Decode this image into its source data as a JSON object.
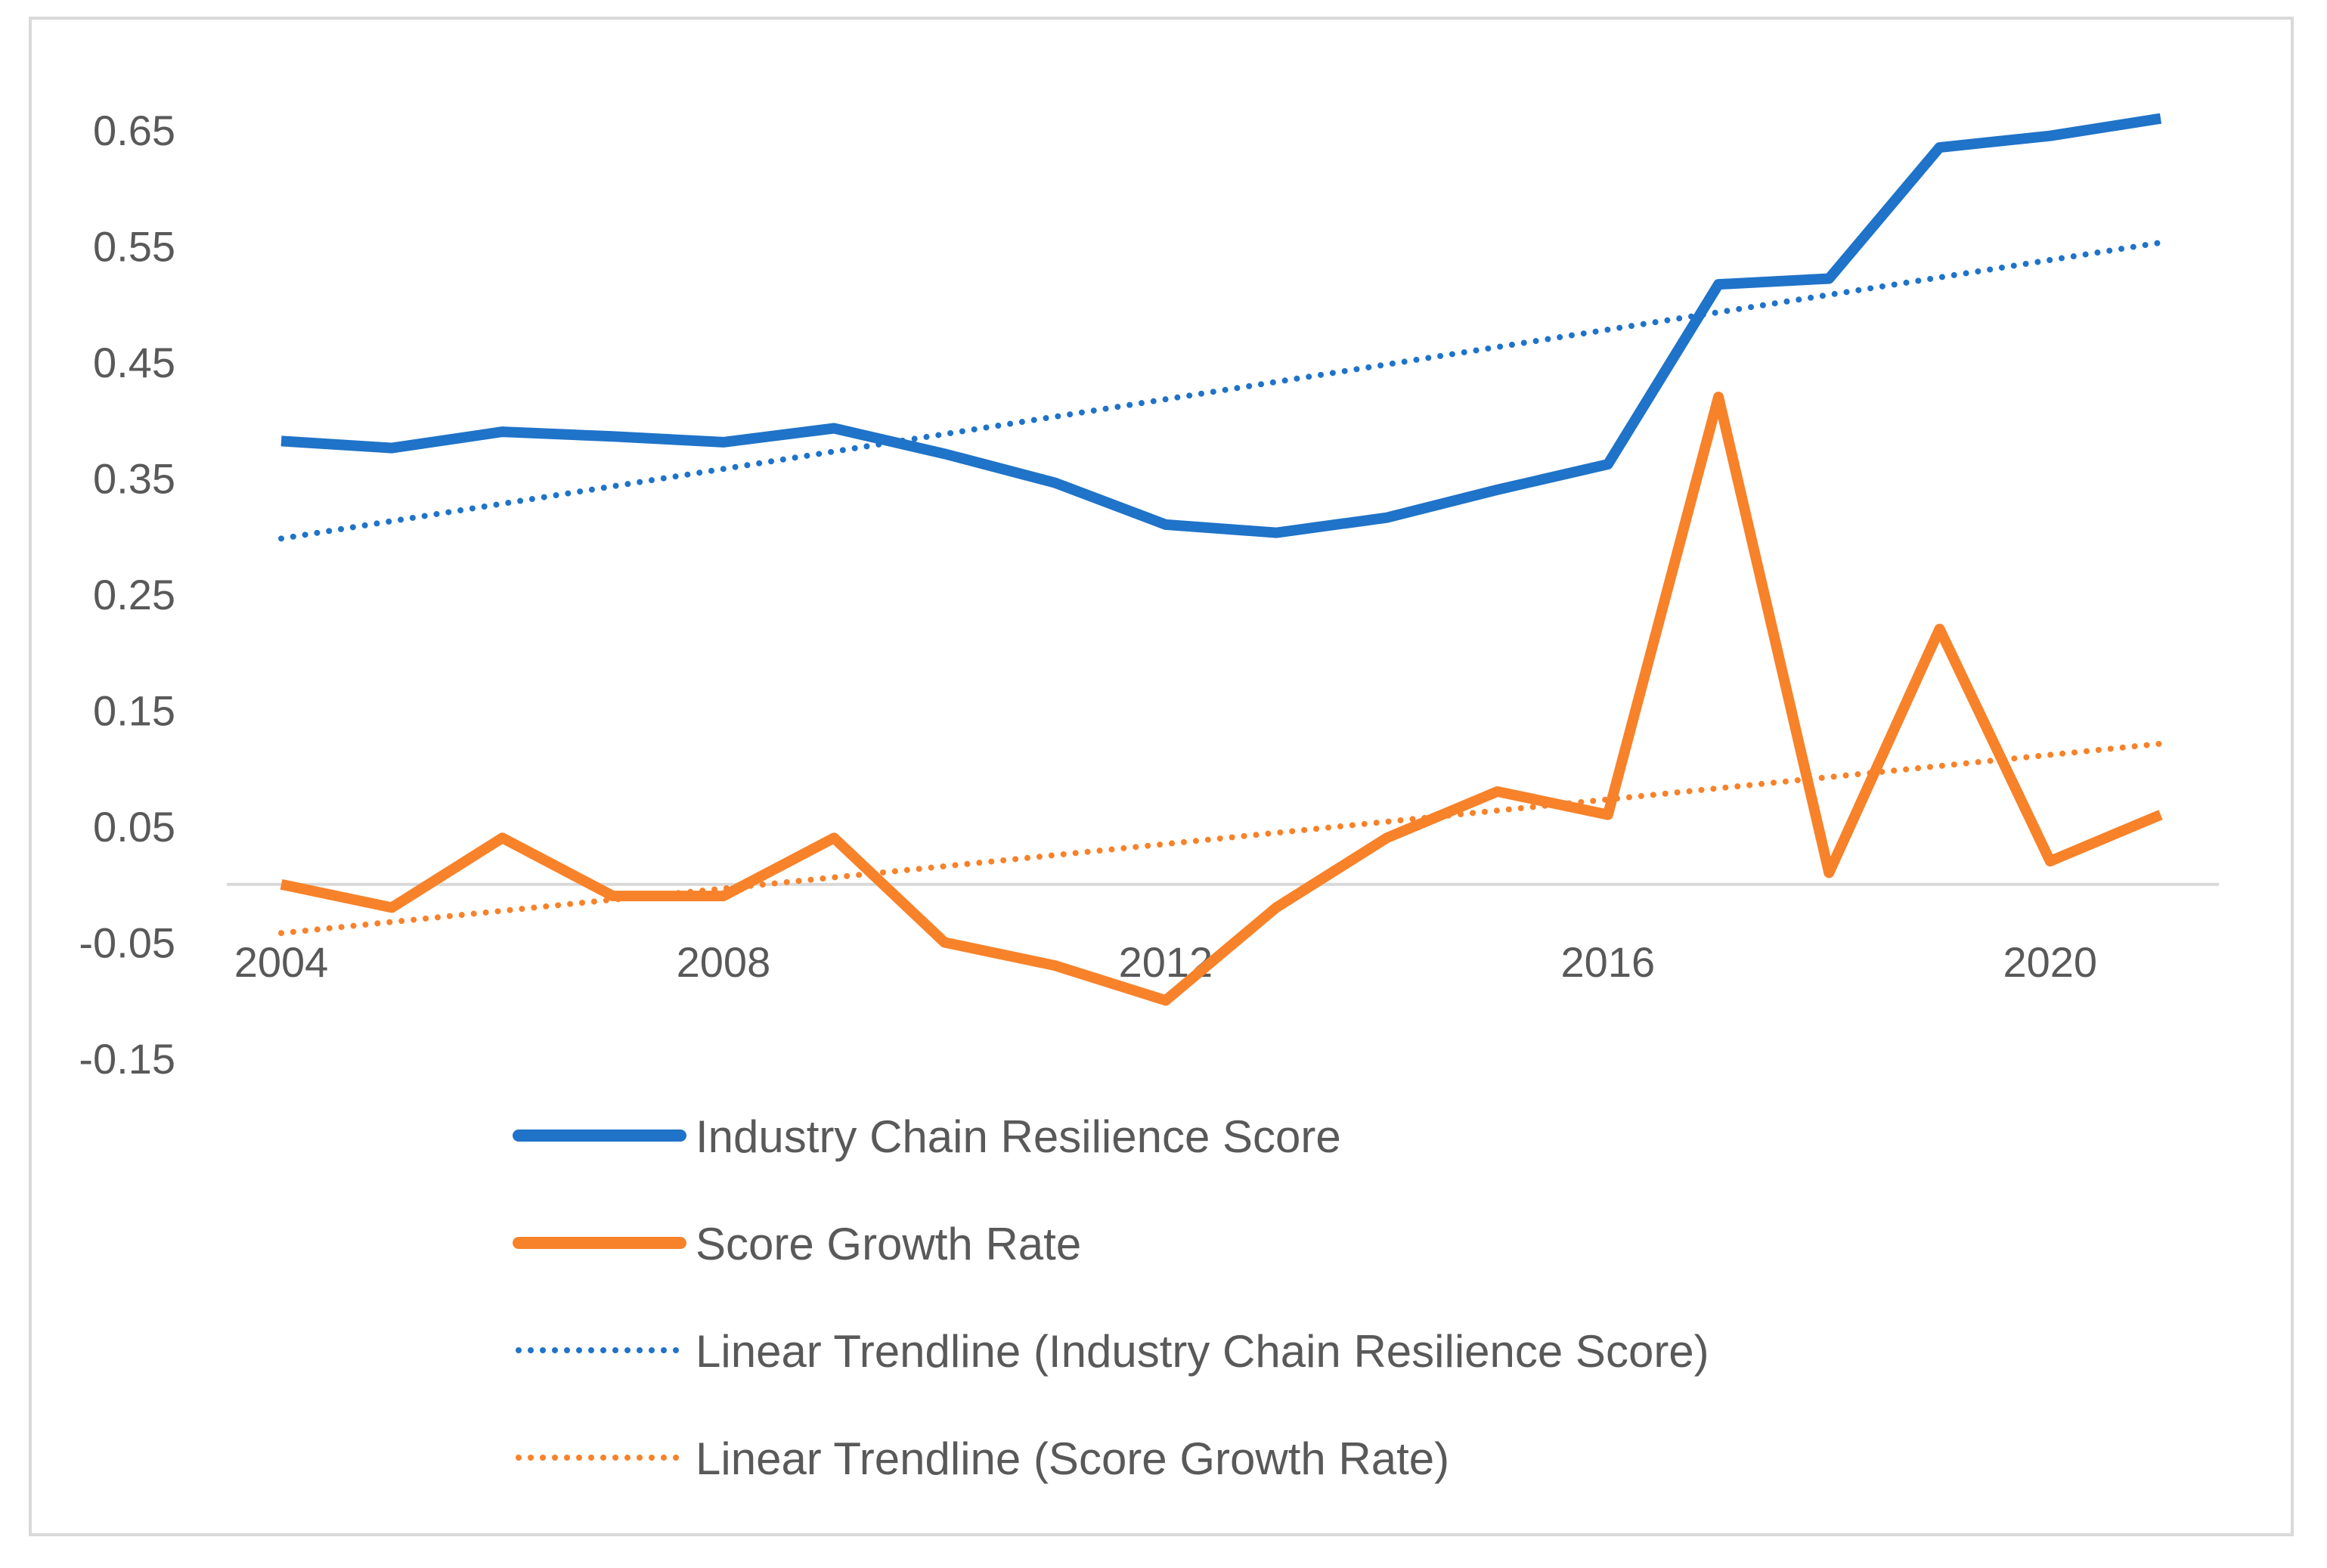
{
  "chart_data": {
    "type": "line",
    "title": "",
    "xlabel": "",
    "ylabel": "",
    "x": [
      2004,
      2005,
      2006,
      2007,
      2008,
      2009,
      2010,
      2011,
      2012,
      2013,
      2014,
      2015,
      2016,
      2017,
      2018,
      2019,
      2020,
      2021
    ],
    "x_tick_labels": [
      "2004",
      "2008",
      "2012",
      "2016",
      "2020"
    ],
    "y_tick_labels": [
      "0.65",
      "0.55",
      "0.45",
      "0.35",
      "0.25",
      "0.15",
      "0.05",
      "-0.05",
      "-0.15"
    ],
    "ylim": [
      -0.15,
      0.65
    ],
    "xlim": [
      2004,
      2021
    ],
    "grid": false,
    "legend_position": "bottom",
    "series": [
      {
        "name": "Industry Chain Resilience Score",
        "style": "solid",
        "color": "#1f73c8",
        "values": [
          0.382,
          0.376,
          0.39,
          0.386,
          0.381,
          0.393,
          0.371,
          0.346,
          0.31,
          0.303,
          0.316,
          0.34,
          0.362,
          0.517,
          0.522,
          0.635,
          0.645,
          0.66
        ]
      },
      {
        "name": "Score Growth Rate",
        "style": "solid",
        "color": "#f7822a",
        "values": [
          0.0,
          -0.02,
          0.04,
          -0.01,
          -0.01,
          0.04,
          -0.05,
          -0.07,
          -0.1,
          -0.02,
          0.04,
          0.08,
          0.06,
          0.42,
          0.01,
          0.22,
          0.02,
          0.06
        ]
      },
      {
        "name": "Linear Trendline (Industry Chain Resilience Score)",
        "style": "dotted",
        "color": "#1f73c8",
        "values": [
          0.298,
          0.313,
          0.328,
          0.343,
          0.358,
          0.373,
          0.388,
          0.403,
          0.418,
          0.433,
          0.448,
          0.463,
          0.478,
          0.493,
          0.508,
          0.523,
          0.538,
          0.553
        ]
      },
      {
        "name": "Linear Trendline (Score Growth Rate)",
        "style": "dotted",
        "color": "#f7822a",
        "values": [
          -0.042,
          -0.0324,
          -0.0228,
          -0.0132,
          -0.0036,
          0.006,
          0.0156,
          0.0252,
          0.0348,
          0.0444,
          0.054,
          0.0636,
          0.0732,
          0.0828,
          0.0924,
          0.102,
          0.1116,
          0.1212
        ]
      }
    ]
  }
}
